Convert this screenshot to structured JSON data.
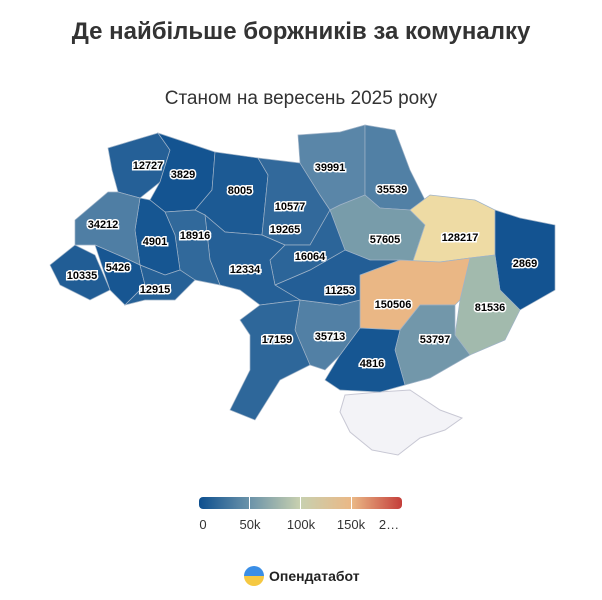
{
  "title": "Де найбільше боржників за комуналку",
  "subtitle": "Станом на вересень 2025 року",
  "legend": {
    "ticks": [
      "0",
      "50k",
      "100k",
      "150k",
      "2…"
    ],
    "stops": [
      "#0d4f8f",
      "#5a86a8",
      "#9fb8ad",
      "#f0e8b0",
      "#e8a878",
      "#c43e3a"
    ],
    "min": 0,
    "max": 200000
  },
  "brand": "Опендатабот",
  "no_data_color": "#f3f3f7",
  "regions": {
    "volyn": 12727,
    "rivne": 3829,
    "zhytomyr": 8005,
    "kyiv_city": 10577,
    "kyiv": 19265,
    "chernihiv": 39991,
    "sumy": 35539,
    "poltava": 57605,
    "kharkiv": 128217,
    "luhansk": 2869,
    "donetsk": 81536,
    "dnipro": 150506,
    "zaporizhzhia": 53797,
    "kherson": 4816,
    "mykolaiv": 35713,
    "kirovohrad": 11253,
    "cherkasy": 16064,
    "vinnytsia": 12334,
    "odesa": 17159,
    "khmelnytskyi": 18916,
    "ternopil": 4901,
    "lviv": 34212,
    "zakarpattia": 10335,
    "ivano_frankivsk": 5426,
    "chernivtsi": 12915
  }
}
